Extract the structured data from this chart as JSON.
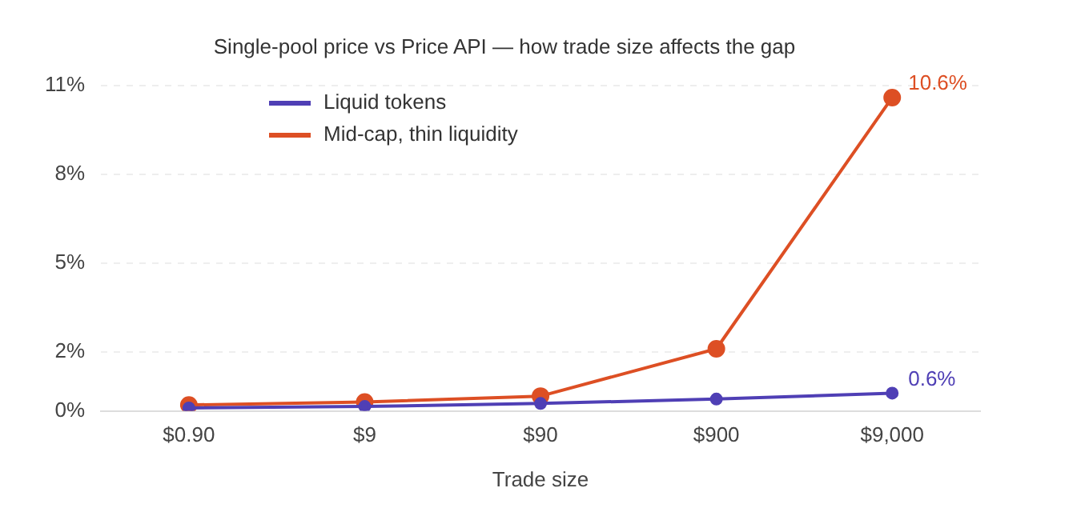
{
  "chart_data": {
    "type": "line",
    "title": "Single-pool price vs Price API — how trade size affects the gap",
    "xlabel": "Trade size",
    "categories": [
      "$0.90",
      "$9",
      "$90",
      "$900",
      "$9,000"
    ],
    "series": [
      {
        "name": "Liquid tokens",
        "color": "#4f3fb5",
        "values": [
          0.1,
          0.15,
          0.25,
          0.4,
          0.6
        ]
      },
      {
        "name": "Mid-cap, thin liquidity",
        "color": "#dd4f24",
        "values": [
          0.2,
          0.3,
          0.5,
          2.1,
          10.6
        ]
      }
    ],
    "ylim": [
      0,
      11
    ],
    "yticks": [
      {
        "value": 0,
        "label": "0%"
      },
      {
        "value": 2,
        "label": "2%"
      },
      {
        "value": 5,
        "label": "5%"
      },
      {
        "value": 8,
        "label": "8%"
      },
      {
        "value": 11,
        "label": "11%"
      }
    ],
    "annotations": [
      {
        "text": "0.6%",
        "x": "$9,000",
        "y": 0.6
      },
      {
        "text": "10.6%",
        "x": "$9,000",
        "y": 10.6
      }
    ],
    "grid": "y",
    "legend": "top left",
    "marker": "circle",
    "line_style": "solid"
  }
}
